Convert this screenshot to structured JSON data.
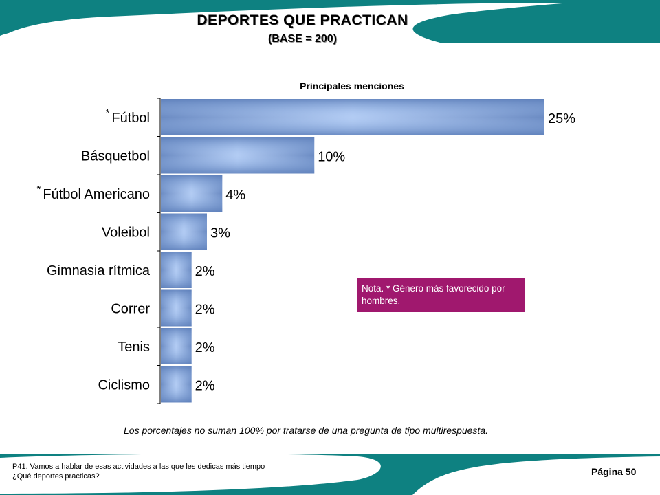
{
  "header": {
    "title": "DEPORTES QUE PRACTICAN",
    "subtitle": "(BASE = 200)"
  },
  "chart_data": {
    "type": "bar",
    "orientation": "horizontal",
    "title": "Principales menciones",
    "categories": [
      "Fútbol",
      "Básquetbol",
      "Fútbol Americano",
      "Voleibol",
      "Gimnasia rítmica",
      "Correr",
      "Tenis",
      "Ciclismo"
    ],
    "values": [
      25,
      10,
      4,
      3,
      2,
      2,
      2,
      2
    ],
    "value_labels": [
      "25%",
      "10%",
      "4%",
      "3%",
      "2%",
      "2%",
      "2%",
      "2%"
    ],
    "markers": [
      "*",
      "",
      "*",
      "",
      "",
      "",
      "",
      ""
    ],
    "xlim": [
      0,
      25
    ],
    "grid": false,
    "bar_color": "#7f9fce"
  },
  "note": "Nota. * Género más favorecido por hombres.",
  "footnote": "Los porcentajes no suman 100% por tratarse de una pregunta de tipo multirespuesta.",
  "question_line1": "P41. Vamos a hablar de esas actividades a las que les dedicas más tiempo",
  "question_line2": "¿Qué deportes practicas?",
  "page_number": "Página 50",
  "colors": {
    "teal": "#0e8181",
    "note_bg": "#a0186e"
  }
}
